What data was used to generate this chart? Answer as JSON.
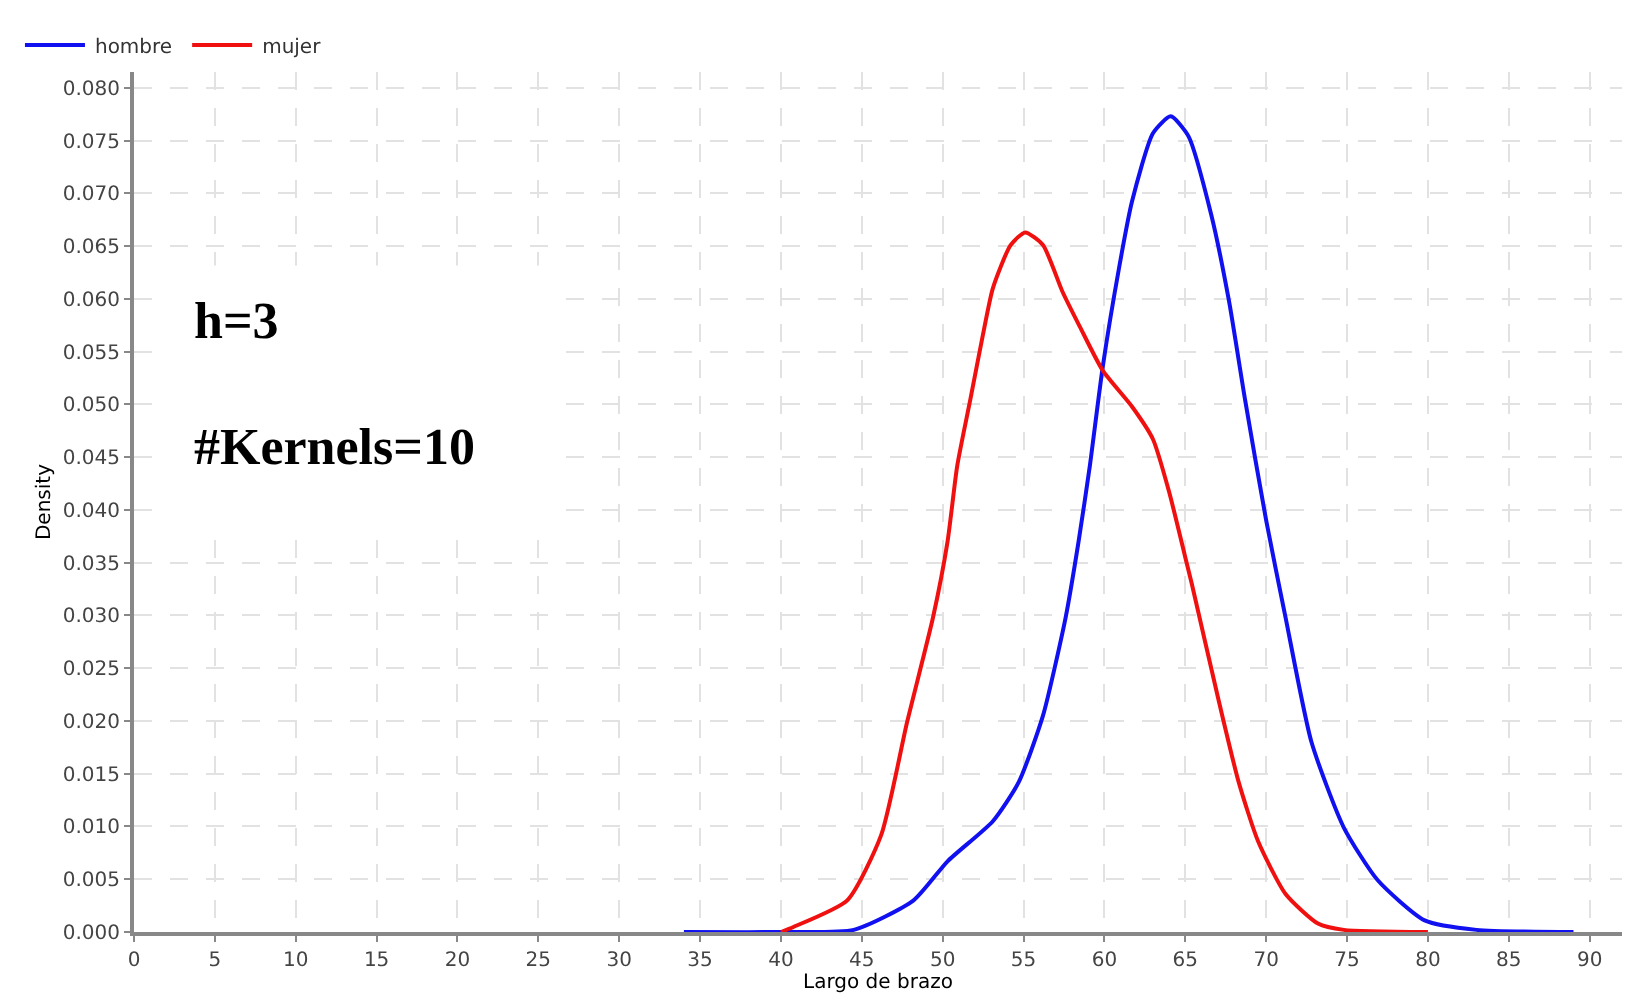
{
  "chart_data": {
    "type": "line",
    "xlabel": "Largo de brazo",
    "ylabel": "Density",
    "xlim": [
      0,
      92
    ],
    "xticks": [
      0,
      5,
      10,
      15,
      20,
      25,
      30,
      35,
      40,
      45,
      50,
      55,
      60,
      65,
      70,
      75,
      80,
      85,
      90
    ],
    "ylim": [
      0,
      0.0815
    ],
    "yticks": [
      {
        "value": 0,
        "label": "0.000"
      },
      0.005,
      {
        "value": 0.01,
        "label": "0.010"
      },
      0.015,
      {
        "value": 0.02,
        "label": "0.020"
      },
      0.025,
      {
        "value": 0.03,
        "label": "0.030"
      },
      0.035,
      {
        "value": 0.04,
        "label": "0.040"
      },
      0.045,
      {
        "value": 0.05,
        "label": "0.050"
      },
      0.055,
      {
        "value": 0.06,
        "label": "0.060"
      },
      0.065,
      {
        "value": 0.07,
        "label": "0.070"
      },
      0.075,
      {
        "value": 0.08,
        "label": "0.080"
      }
    ],
    "grid": true,
    "legend": "top left",
    "marker": "none",
    "line_style": "solid",
    "annotations": [
      "h=3",
      "#Kernels=10"
    ],
    "series": [
      {
        "name": "hombre",
        "color": "#1010f0",
        "x": [
          34,
          40,
          44.5,
          48.2,
          50.3,
          53.1,
          54.7,
          56.2,
          57.6,
          58.4,
          59.1,
          59.9,
          60.9,
          61.7,
          63.0,
          64.1,
          65.2,
          66.6,
          67.7,
          68.7,
          70.0,
          71.2,
          72.8,
          74.8,
          76.9,
          79.8,
          83.0,
          89
        ],
        "values": [
          0,
          0,
          0.0002,
          0.003,
          0.0067,
          0.0105,
          0.0142,
          0.0205,
          0.0298,
          0.037,
          0.0442,
          0.0536,
          0.0629,
          0.0692,
          0.0757,
          0.0773,
          0.0754,
          0.068,
          0.0598,
          0.0504,
          0.039,
          0.0298,
          0.018,
          0.0099,
          0.0049,
          0.0011,
          0.0002,
          0
        ]
      },
      {
        "name": "mujer",
        "color": "#f01010",
        "x": [
          40,
          40.8,
          44.1,
          46.2,
          47.8,
          49.4,
          50.3,
          50.9,
          51.7,
          52.5,
          53.1,
          54.2,
          55.1,
          56.2,
          57.4,
          58.5,
          59.9,
          61.7,
          63.0,
          64.0,
          65.0,
          65.4,
          67.1,
          68.3,
          69.5,
          71.2,
          73.2,
          74.8,
          80
        ],
        "values": [
          0,
          0.0005,
          0.003,
          0.0092,
          0.0199,
          0.0298,
          0.037,
          0.0442,
          0.0504,
          0.0567,
          0.061,
          0.0651,
          0.0663,
          0.0651,
          0.0607,
          0.0573,
          0.0532,
          0.0498,
          0.0467,
          0.0417,
          0.0355,
          0.033,
          0.0217,
          0.0142,
          0.0086,
          0.0036,
          0.0008,
          0.0002,
          0
        ]
      }
    ]
  }
}
